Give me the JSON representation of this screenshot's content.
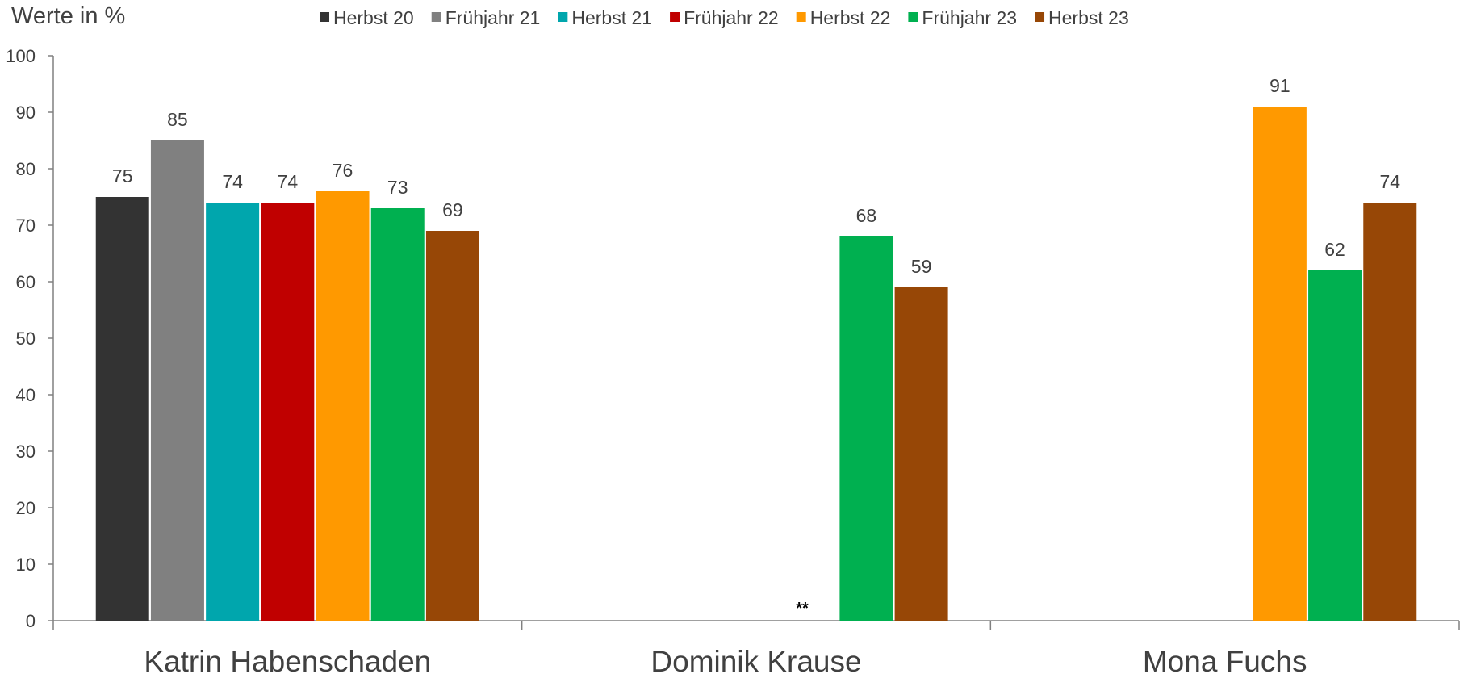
{
  "chart_data": {
    "type": "bar",
    "unit_label": "Werte in %",
    "categories": [
      "Katrin Habenschaden",
      "Dominik Krause",
      "Mona Fuchs"
    ],
    "ylim": [
      0,
      100
    ],
    "yticks": [
      "0",
      "10",
      "20",
      "30",
      "40",
      "50",
      "60",
      "70",
      "80",
      "90",
      "100"
    ],
    "legend_position": "top",
    "grid": false,
    "series": [
      {
        "name": "Herbst 20",
        "color": "#333333",
        "values": [
          75,
          null,
          null
        ]
      },
      {
        "name": "Frühjahr 21",
        "color": "#808080",
        "values": [
          85,
          null,
          null
        ]
      },
      {
        "name": "Herbst 21",
        "color": "#00A6AD",
        "values": [
          74,
          null,
          null
        ]
      },
      {
        "name": "Frühjahr 22",
        "color": "#C00000",
        "values": [
          74,
          null,
          null
        ]
      },
      {
        "name": "Herbst 22",
        "color": "#FF9900",
        "values": [
          76,
          null,
          91
        ]
      },
      {
        "name": "Frühjahr 23",
        "color": "#00B050",
        "values": [
          73,
          68,
          62
        ]
      },
      {
        "name": "Herbst 23",
        "color": "#974706",
        "values": [
          69,
          59,
          74
        ]
      }
    ],
    "annotations": [
      {
        "text": "**",
        "category": "Dominik Krause"
      }
    ]
  }
}
